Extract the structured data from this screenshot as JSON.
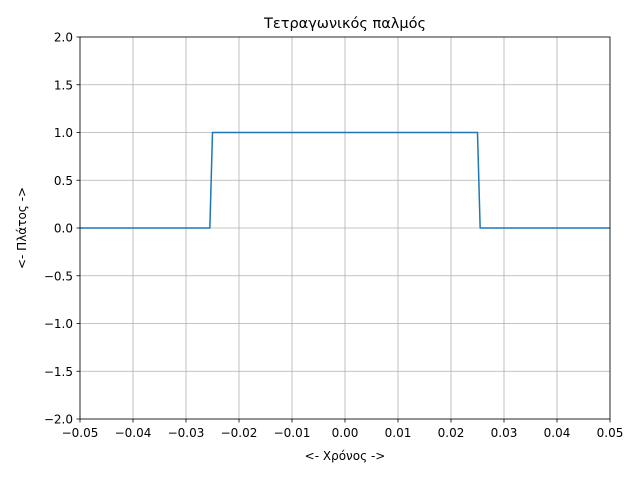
{
  "chart_data": {
    "type": "line",
    "title": "Τετραγωνικός παλμός",
    "xlabel": "<- Χρόνος ->",
    "ylabel": "<- Πλάτος ->",
    "xlim": [
      -0.05,
      0.05
    ],
    "ylim": [
      -2.0,
      2.0
    ],
    "grid": true,
    "x_ticks": [
      -0.05,
      -0.04,
      -0.03,
      -0.02,
      -0.01,
      0.0,
      0.01,
      0.02,
      0.03,
      0.04,
      0.05
    ],
    "x_tick_labels": [
      "−0.05",
      "−0.04",
      "−0.03",
      "−0.02",
      "−0.01",
      "0.00",
      "0.01",
      "0.02",
      "0.03",
      "0.04",
      "0.05"
    ],
    "y_ticks": [
      -2.0,
      -1.5,
      -1.0,
      -0.5,
      0.0,
      0.5,
      1.0,
      1.5,
      2.0
    ],
    "y_tick_labels": [
      "−2.0",
      "−1.5",
      "−1.0",
      "−0.5",
      "0.0",
      "0.5",
      "1.0",
      "1.5",
      "2.0"
    ],
    "series": [
      {
        "color": "#1f77b4",
        "x": [
          -0.05,
          -0.0255,
          -0.025,
          0.025,
          0.0255,
          0.05
        ],
        "y": [
          0,
          0,
          1,
          1,
          0,
          0
        ]
      }
    ]
  }
}
